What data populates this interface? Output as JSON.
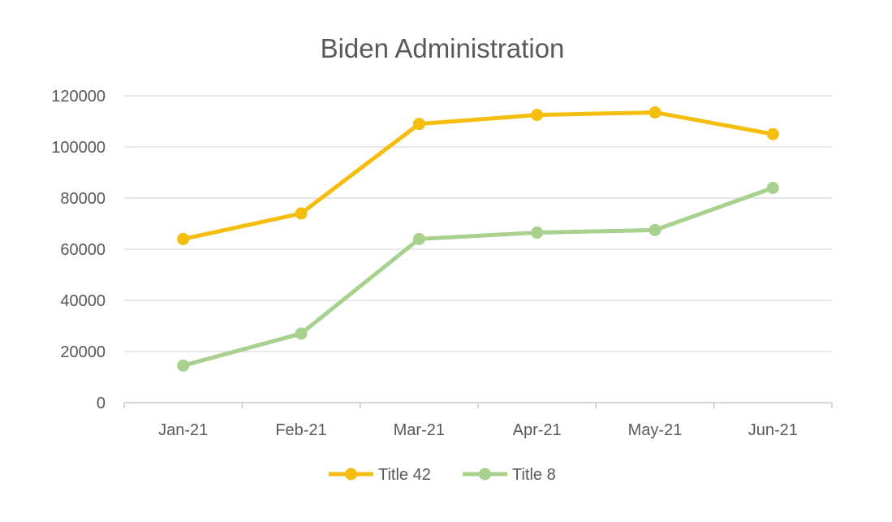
{
  "chart_data": {
    "type": "line",
    "title": "Biden Administration",
    "xlabel": "",
    "ylabel": "",
    "categories": [
      "Jan-21",
      "Feb-21",
      "Mar-21",
      "Apr-21",
      "May-21",
      "Jun-21"
    ],
    "ylim": [
      0,
      120000
    ],
    "yticks": [
      0,
      20000,
      40000,
      60000,
      80000,
      100000,
      120000
    ],
    "ytick_labels": [
      "0",
      "20000",
      "40000",
      "60000",
      "80000",
      "100000",
      "120000"
    ],
    "grid": true,
    "legend_position": "bottom",
    "series": [
      {
        "name": "Title 42",
        "color": "#f5bd0e",
        "values": [
          64000,
          74000,
          109000,
          112500,
          113500,
          105000
        ]
      },
      {
        "name": "Title 8",
        "color": "#a9d18e",
        "values": [
          14500,
          27000,
          64000,
          66500,
          67500,
          84000
        ]
      }
    ]
  }
}
